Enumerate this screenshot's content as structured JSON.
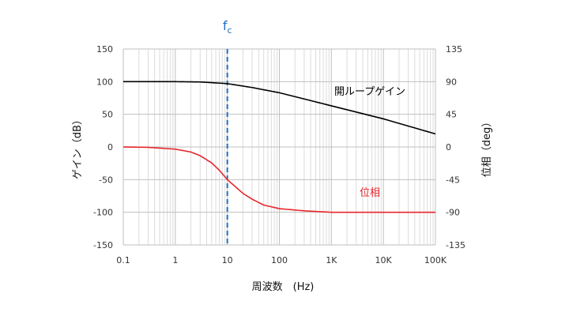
{
  "chart_data": {
    "type": "line",
    "x_scale": "log",
    "xlim": [
      0.1,
      100000
    ],
    "x_ticks": [
      {
        "value": 0.1,
        "label": "0.1"
      },
      {
        "value": 1,
        "label": "1"
      },
      {
        "value": 10,
        "label": "10"
      },
      {
        "value": 100,
        "label": "100"
      },
      {
        "value": 1000,
        "label": "1K"
      },
      {
        "value": 10000,
        "label": "10K"
      },
      {
        "value": 100000,
        "label": "100K"
      }
    ],
    "xlabel": "周波数　(Hz)",
    "ylabel_left": "ゲイン（dB）",
    "ylabel_right": "位相（deg）",
    "ylim_left": [
      -150,
      150
    ],
    "yticks_left": [
      150,
      100,
      50,
      0,
      -50,
      -100,
      -150
    ],
    "ylim_right": [
      -135,
      135
    ],
    "yticks_right": [
      135,
      90,
      45,
      0,
      -45,
      -90,
      -135
    ],
    "grid": true,
    "series": [
      {
        "name": "開ループゲイン",
        "axis": "left",
        "color": "#000000",
        "points": [
          [
            0.1,
            100
          ],
          [
            1,
            100
          ],
          [
            3,
            99.5
          ],
          [
            10,
            97
          ],
          [
            30,
            91
          ],
          [
            100,
            83
          ],
          [
            1000,
            63
          ],
          [
            10000,
            43
          ],
          [
            100000,
            20
          ]
        ]
      },
      {
        "name": "位相",
        "axis": "right",
        "color": "#e8262c",
        "points": [
          [
            0.1,
            0
          ],
          [
            0.3,
            -0.5
          ],
          [
            1,
            -3
          ],
          [
            2,
            -7
          ],
          [
            3,
            -12
          ],
          [
            5,
            -22
          ],
          [
            7,
            -32
          ],
          [
            10,
            -45
          ],
          [
            20,
            -64
          ],
          [
            30,
            -72
          ],
          [
            50,
            -80
          ],
          [
            100,
            -85
          ],
          [
            300,
            -88
          ],
          [
            1000,
            -90
          ],
          [
            100000,
            -90
          ]
        ]
      }
    ],
    "annotations": [
      {
        "text": "f",
        "subscript": "c",
        "x": 10,
        "style": "dashed vertical line",
        "color": "#1f6fc0"
      }
    ]
  }
}
